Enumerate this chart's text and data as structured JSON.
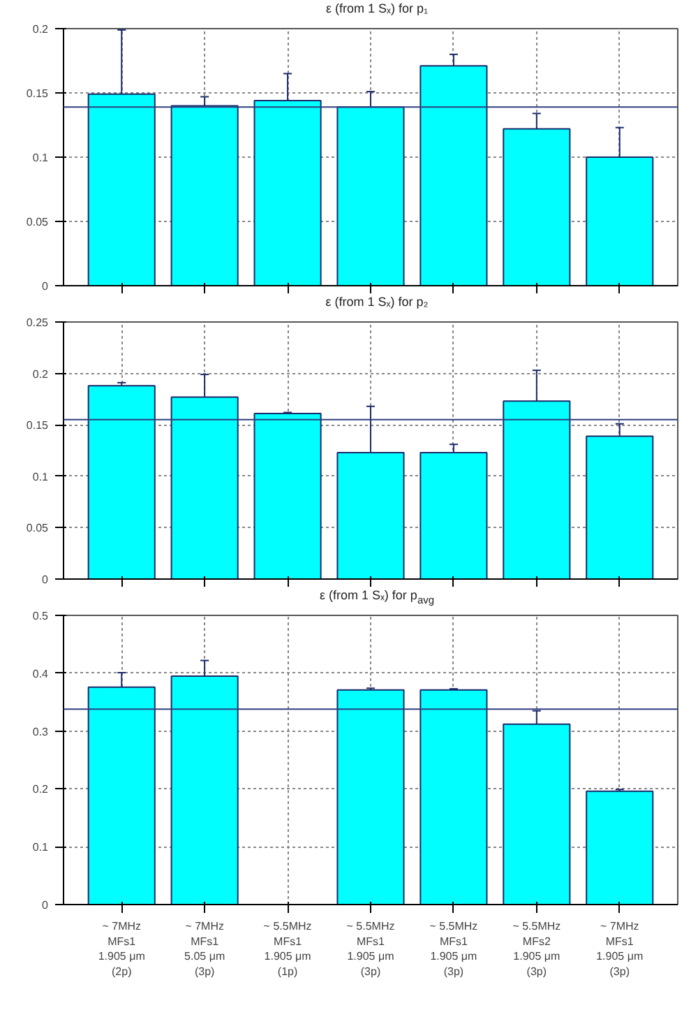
{
  "chart_data": [
    {
      "type": "bar",
      "title": "ε (from 1 Sₓ) for p₁",
      "categories": [
        null,
        null,
        null,
        null,
        null,
        null,
        null
      ],
      "series": [
        {
          "color": "#00ffff",
          "values": [
            0.149,
            0.14,
            0.144,
            0.139,
            0.171,
            0.122,
            0.1
          ],
          "errors": [
            0.05,
            0.007,
            0.021,
            0.012,
            0.009,
            0.012,
            0.023
          ]
        }
      ],
      "ylim": [
        0,
        0.2
      ],
      "yticks": [
        0,
        0.05,
        0.1,
        0.15,
        0.2
      ],
      "grid": true,
      "tick_labels": "y",
      "ref_lines": [
        {
          "axis": "y",
          "value": 0.139,
          "color": "#2f3f7f"
        }
      ]
    },
    {
      "type": "bar",
      "title": "ε (from 1 Sₓ) for p₂",
      "categories": [
        null,
        null,
        null,
        null,
        null,
        null,
        null
      ],
      "series": [
        {
          "color": "#00ffff",
          "values": [
            0.188,
            0.177,
            0.161,
            0.123,
            0.123,
            0.173,
            0.139
          ],
          "errors": [
            0.003,
            0.022,
            0.001,
            0.045,
            0.008,
            0.03,
            0.012
          ]
        }
      ],
      "ylim": [
        0,
        0.25
      ],
      "yticks": [
        0,
        0.05,
        0.1,
        0.15,
        0.2,
        0.25
      ],
      "grid": true,
      "tick_labels": "y",
      "ref_lines": [
        {
          "axis": "y",
          "value": 0.155,
          "color": "#2f3f7f"
        }
      ]
    },
    {
      "type": "bar",
      "title": "ε (from 1 Sₓ) for p$_{avg}$",
      "categories": [
        "~ 7MHz\nMFs1\n1.905 μm\n(2p)",
        "~ 7MHz\nMFs1\n5.05 μm\n(3p)",
        "~ 5.5MHz\nMFs1\n1.905 μm\n(1p)",
        "~ 5.5MHz\nMFs1\n1.905 μm\n(3p)",
        "~ 5.5MHz\nMFs1\n1.905 μm\n(3p)",
        "~ 5.5MHz\nMFs2\n1.905 μm\n(3p)",
        "~ 7MHz\nMFs1\n1.905 μm\n(3p)"
      ],
      "series": [
        {
          "color": "#00ffff",
          "values": [
            0.376,
            0.395,
            null,
            0.371,
            0.371,
            0.312,
            0.196
          ],
          "errors": [
            0.025,
            0.027,
            null,
            0.003,
            0.002,
            0.023,
            0.003
          ]
        }
      ],
      "ylim": [
        0,
        0.5
      ],
      "yticks": [
        0,
        0.1,
        0.2,
        0.3,
        0.4,
        0.5
      ],
      "grid": true,
      "ref_lines": [
        {
          "axis": "y",
          "value": 0.338,
          "color": "#2f3f7f"
        }
      ]
    }
  ]
}
